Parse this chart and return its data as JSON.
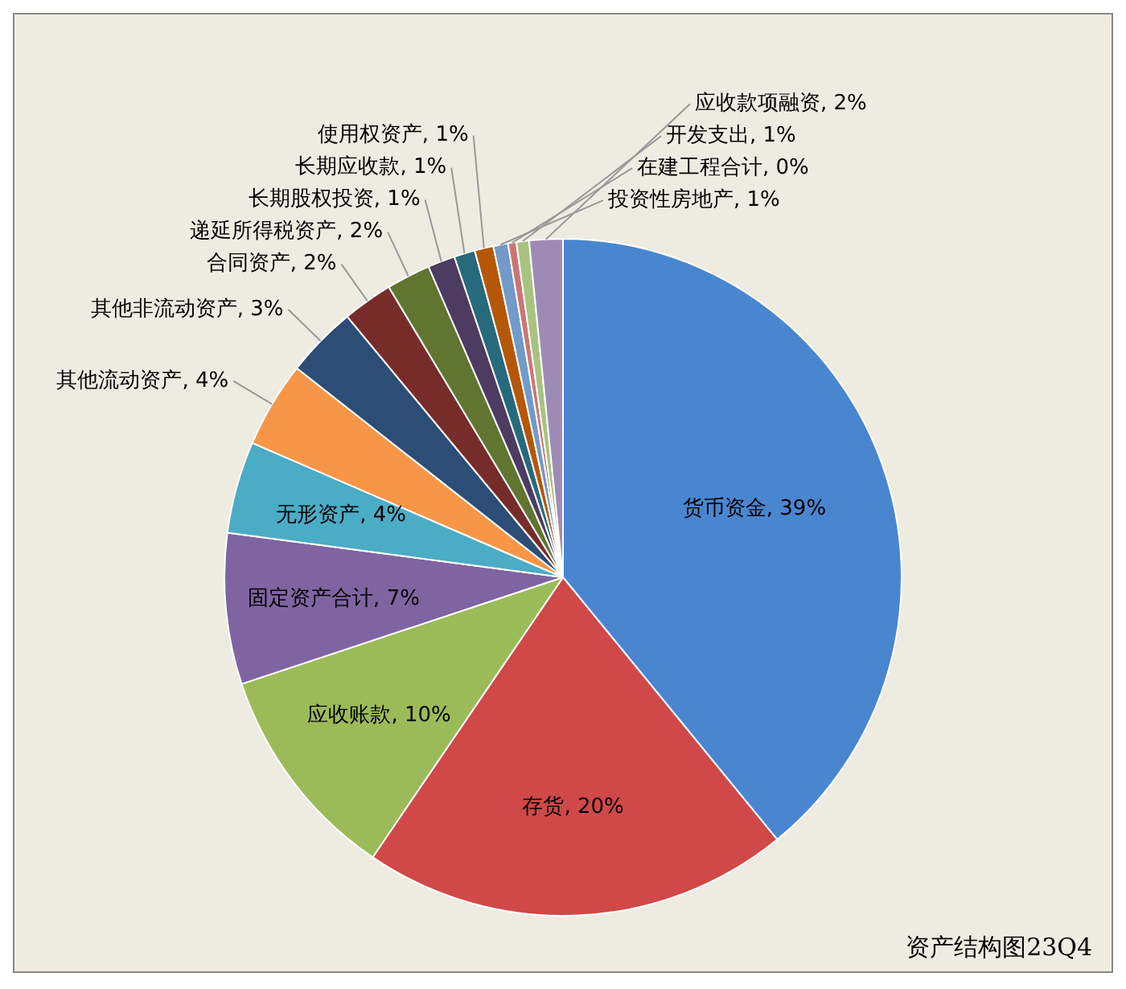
{
  "chart_data": {
    "type": "pie",
    "categories": [
      "货币资金",
      "存货",
      "应收账款",
      "固定资产合计",
      "无形资产",
      "其他流动资产",
      "其他非流动资产",
      "合同资产",
      "递延所得税资产",
      "长期股权投资",
      "长期应收款",
      "使用权资产",
      "投资性房地产",
      "在建工程合计",
      "开发支出",
      "应收款项融资"
    ],
    "values": [
      39.1,
      20.4,
      10.4,
      7.2,
      4.4,
      4.1,
      3.4,
      2.4,
      2.1,
      1.3,
      1.0,
      0.9,
      0.7,
      0.4,
      0.6,
      1.6
    ],
    "value_labels": [
      "39%",
      "20%",
      "10%",
      "7%",
      "4%",
      "4%",
      "3%",
      "2%",
      "2%",
      "1%",
      "1%",
      "1%",
      "1%",
      "0%",
      "1%",
      "2%"
    ],
    "colors": [
      "#4a86d0",
      "#d04848",
      "#9bbb59",
      "#8064a2",
      "#4bacc6",
      "#f79646",
      "#2c4d75",
      "#772c2a",
      "#5f7530",
      "#4d3b62",
      "#276a7c",
      "#b65708",
      "#729aca",
      "#cc7674",
      "#a8c37f",
      "#9d8bb5"
    ],
    "annotations": [
      "资产结构图23Q4"
    ]
  }
}
